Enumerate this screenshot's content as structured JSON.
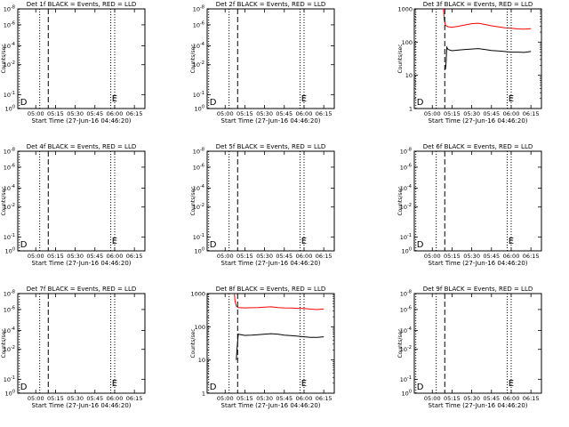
{
  "colors": {
    "events": "#000000",
    "lld": "#ff0000",
    "axis": "#000000",
    "background": "#ffffff"
  },
  "x_tick_labels": [
    "05:00",
    "05:15",
    "05:30",
    "05:45",
    "06:00",
    "06:15"
  ],
  "x_axis_label": "Start Time (27-Jun-16 04:46:20)",
  "y_axis_label": "Counts/sec",
  "chart_data": [
    {
      "type": "line",
      "detector": "1f",
      "title": "Det 1f BLACK = Events, RED = LLD",
      "xlabel": "Start Time (27-Jun-16 04:46:20)",
      "ylabel": "Counts/sec",
      "xlim": [
        "04:46:20",
        "06:23:00"
      ],
      "y_scale": "log-exponent",
      "yticks": [
        "10^-8",
        "10^-6",
        "10^-4",
        "10^-2",
        "10^-1",
        "10^0"
      ],
      "markers": [
        {
          "label": "D",
          "time": "04:47:30",
          "style": "dotted"
        },
        {
          "label": "",
          "time": "05:03:00",
          "style": "dotted"
        },
        {
          "label": "",
          "time": "05:09:30",
          "style": "dashed"
        },
        {
          "label": "",
          "time": "05:57:00",
          "style": "dotted"
        },
        {
          "label": "E",
          "time": "06:00:00",
          "style": "dotted"
        }
      ],
      "series": []
    },
    {
      "type": "line",
      "detector": "2f",
      "title": "Det 2f BLACK = Events, RED = LLD",
      "xlabel": "Start Time (27-Jun-16 04:46:20)",
      "ylabel": "Counts/sec",
      "xlim": [
        "04:46:20",
        "06:23:00"
      ],
      "y_scale": "log-exponent",
      "yticks": [
        "10^-8",
        "10^-6",
        "10^-4",
        "10^-2",
        "10^-1",
        "10^0"
      ],
      "markers": [
        {
          "label": "D",
          "time": "04:47:30",
          "style": "dotted"
        },
        {
          "label": "",
          "time": "05:03:00",
          "style": "dotted"
        },
        {
          "label": "",
          "time": "05:09:30",
          "style": "dashed"
        },
        {
          "label": "",
          "time": "05:57:00",
          "style": "dotted"
        },
        {
          "label": "E",
          "time": "06:00:00",
          "style": "dotted"
        }
      ],
      "series": []
    },
    {
      "type": "line",
      "detector": "3f",
      "title": "Det 3f BLACK = Events, RED = LLD",
      "xlabel": "Start Time (27-Jun-16 04:46:20)",
      "ylabel": "Counts/sec",
      "xlim": [
        "04:46:20",
        "06:23:00"
      ],
      "y_scale": "log",
      "ylim": [
        1,
        1000
      ],
      "yticks": [
        "1",
        "10",
        "100",
        "1000"
      ],
      "markers": [
        {
          "label": "D",
          "time": "04:47:30",
          "style": "dotted"
        },
        {
          "label": "",
          "time": "05:03:00",
          "style": "dotted"
        },
        {
          "label": "",
          "time": "05:09:30",
          "style": "dashed"
        },
        {
          "label": "",
          "time": "05:57:00",
          "style": "dotted"
        },
        {
          "label": "E",
          "time": "06:00:00",
          "style": "dotted"
        }
      ],
      "series": [
        {
          "color": "red",
          "x": [
            "05:08:30",
            "05:09:00",
            "05:10:00",
            "05:12:00",
            "05:15:00",
            "05:20:00",
            "05:25:00",
            "05:30:00",
            "05:35:00",
            "05:40:00",
            "05:45:00",
            "05:50:00",
            "05:55:00",
            "06:00:00",
            "06:05:00",
            "06:10:00",
            "06:15:00"
          ],
          "y": [
            1000,
            500,
            320,
            290,
            280,
            300,
            330,
            360,
            370,
            340,
            310,
            290,
            270,
            260,
            250,
            245,
            255
          ]
        },
        {
          "color": "black",
          "x": [
            "05:10:00",
            "05:10:30",
            "05:11:00",
            "05:12:00",
            "05:15:00",
            "05:20:00",
            "05:25:00",
            "05:30:00",
            "05:35:00",
            "05:40:00",
            "05:45:00",
            "05:50:00",
            "05:55:00",
            "06:00:00",
            "06:05:00",
            "06:10:00",
            "06:15:00"
          ],
          "y": [
            15,
            25,
            70,
            60,
            55,
            58,
            60,
            62,
            64,
            60,
            56,
            54,
            52,
            50,
            50,
            49,
            52
          ]
        }
      ]
    },
    {
      "type": "line",
      "detector": "4f",
      "title": "Det 4f BLACK = Events, RED = LLD",
      "xlabel": "Start Time (27-Jun-16 04:46:20)",
      "ylabel": "Counts/sec",
      "xlim": [
        "04:46:20",
        "06:23:00"
      ],
      "y_scale": "log-exponent",
      "yticks": [
        "10^-8",
        "10^-6",
        "10^-4",
        "10^-2",
        "10^-1",
        "10^0"
      ],
      "markers": [
        {
          "label": "D",
          "time": "04:47:30",
          "style": "dotted"
        },
        {
          "label": "",
          "time": "05:03:00",
          "style": "dotted"
        },
        {
          "label": "",
          "time": "05:09:30",
          "style": "dashed"
        },
        {
          "label": "",
          "time": "05:57:00",
          "style": "dotted"
        },
        {
          "label": "E",
          "time": "06:00:00",
          "style": "dotted"
        }
      ],
      "series": []
    },
    {
      "type": "line",
      "detector": "5f",
      "title": "Det 5f BLACK = Events, RED = LLD",
      "xlabel": "Start Time (27-Jun-16 04:46:20)",
      "ylabel": "Counts/sec",
      "xlim": [
        "04:46:20",
        "06:23:00"
      ],
      "y_scale": "log-exponent",
      "yticks": [
        "10^-8",
        "10^-6",
        "10^-4",
        "10^-2",
        "10^-1",
        "10^0"
      ],
      "markers": [
        {
          "label": "D",
          "time": "04:47:30",
          "style": "dotted"
        },
        {
          "label": "",
          "time": "05:03:00",
          "style": "dotted"
        },
        {
          "label": "",
          "time": "05:09:30",
          "style": "dashed"
        },
        {
          "label": "",
          "time": "05:57:00",
          "style": "dotted"
        },
        {
          "label": "E",
          "time": "06:00:00",
          "style": "dotted"
        }
      ],
      "series": []
    },
    {
      "type": "line",
      "detector": "6f",
      "title": "Det 6f BLACK = Events, RED = LLD",
      "xlabel": "Start Time (27-Jun-16 04:46:20)",
      "ylabel": "Counts/sec",
      "xlim": [
        "04:46:20",
        "06:23:00"
      ],
      "y_scale": "log-exponent",
      "yticks": [
        "10^-8",
        "10^-6",
        "10^-4",
        "10^-2",
        "10^-1",
        "10^0"
      ],
      "markers": [
        {
          "label": "D",
          "time": "04:47:30",
          "style": "dotted"
        },
        {
          "label": "",
          "time": "05:03:00",
          "style": "dotted"
        },
        {
          "label": "",
          "time": "05:09:30",
          "style": "dashed"
        },
        {
          "label": "",
          "time": "05:57:00",
          "style": "dotted"
        },
        {
          "label": "E",
          "time": "06:00:00",
          "style": "dotted"
        }
      ],
      "series": []
    },
    {
      "type": "line",
      "detector": "7f",
      "title": "Det 7f BLACK = Events, RED = LLD",
      "xlabel": "Start Time (27-Jun-16 04:46:20)",
      "ylabel": "Counts/sec",
      "xlim": [
        "04:46:20",
        "06:23:00"
      ],
      "y_scale": "log-exponent",
      "yticks": [
        "10^-8",
        "10^-6",
        "10^-4",
        "10^-2",
        "10^-1",
        "10^0"
      ],
      "markers": [
        {
          "label": "D",
          "time": "04:47:30",
          "style": "dotted"
        },
        {
          "label": "",
          "time": "05:03:00",
          "style": "dotted"
        },
        {
          "label": "",
          "time": "05:09:30",
          "style": "dashed"
        },
        {
          "label": "",
          "time": "05:57:00",
          "style": "dotted"
        },
        {
          "label": "E",
          "time": "06:00:00",
          "style": "dotted"
        }
      ],
      "series": []
    },
    {
      "type": "line",
      "detector": "8f",
      "title": "Det 8f BLACK = Events, RED = LLD",
      "xlabel": "Start Time (27-Jun-16 04:46:20)",
      "ylabel": "Counts/sec",
      "xlim": [
        "04:46:20",
        "06:23:00"
      ],
      "y_scale": "log",
      "ylim": [
        1,
        1000
      ],
      "yticks": [
        "1",
        "10",
        "100",
        "1000"
      ],
      "markers": [
        {
          "label": "D",
          "time": "04:47:30",
          "style": "dotted"
        },
        {
          "label": "",
          "time": "05:03:00",
          "style": "dotted"
        },
        {
          "label": "",
          "time": "05:09:30",
          "style": "dashed"
        },
        {
          "label": "",
          "time": "05:57:00",
          "style": "dotted"
        },
        {
          "label": "E",
          "time": "06:00:00",
          "style": "dotted"
        }
      ],
      "series": [
        {
          "color": "red",
          "x": [
            "05:07:00",
            "05:07:30",
            "05:08:30",
            "05:10:00",
            "05:15:00",
            "05:20:00",
            "05:25:00",
            "05:30:00",
            "05:35:00",
            "05:40:00",
            "05:45:00",
            "05:50:00",
            "05:55:00",
            "06:00:00",
            "06:05:00",
            "06:10:00",
            "06:15:00"
          ],
          "y": [
            1000,
            600,
            420,
            380,
            370,
            375,
            380,
            390,
            400,
            380,
            370,
            365,
            360,
            355,
            340,
            330,
            345
          ]
        },
        {
          "color": "black",
          "x": [
            "05:08:30",
            "05:09:00",
            "05:10:00",
            "05:12:00",
            "05:15:00",
            "05:20:00",
            "05:25:00",
            "05:30:00",
            "05:35:00",
            "05:40:00",
            "05:45:00",
            "05:50:00",
            "05:55:00",
            "06:00:00",
            "06:05:00",
            "06:10:00",
            "06:15:00"
          ],
          "y": [
            10,
            20,
            60,
            58,
            55,
            56,
            58,
            60,
            62,
            60,
            56,
            54,
            52,
            50,
            48,
            48,
            50
          ]
        }
      ]
    },
    {
      "type": "line",
      "detector": "9f",
      "title": "Det 9f BLACK = Events, RED = LLD",
      "xlabel": "Start Time (27-Jun-16 04:46:20)",
      "ylabel": "Counts/sec",
      "xlim": [
        "04:46:20",
        "06:23:00"
      ],
      "y_scale": "log-exponent",
      "yticks": [
        "10^-8",
        "10^-6",
        "10^-4",
        "10^-2",
        "10^-1",
        "10^0"
      ],
      "markers": [
        {
          "label": "D",
          "time": "04:47:30",
          "style": "dotted"
        },
        {
          "label": "",
          "time": "05:03:00",
          "style": "dotted"
        },
        {
          "label": "",
          "time": "05:09:30",
          "style": "dashed"
        },
        {
          "label": "",
          "time": "05:57:00",
          "style": "dotted"
        },
        {
          "label": "E",
          "time": "06:00:00",
          "style": "dotted"
        }
      ],
      "series": []
    }
  ]
}
